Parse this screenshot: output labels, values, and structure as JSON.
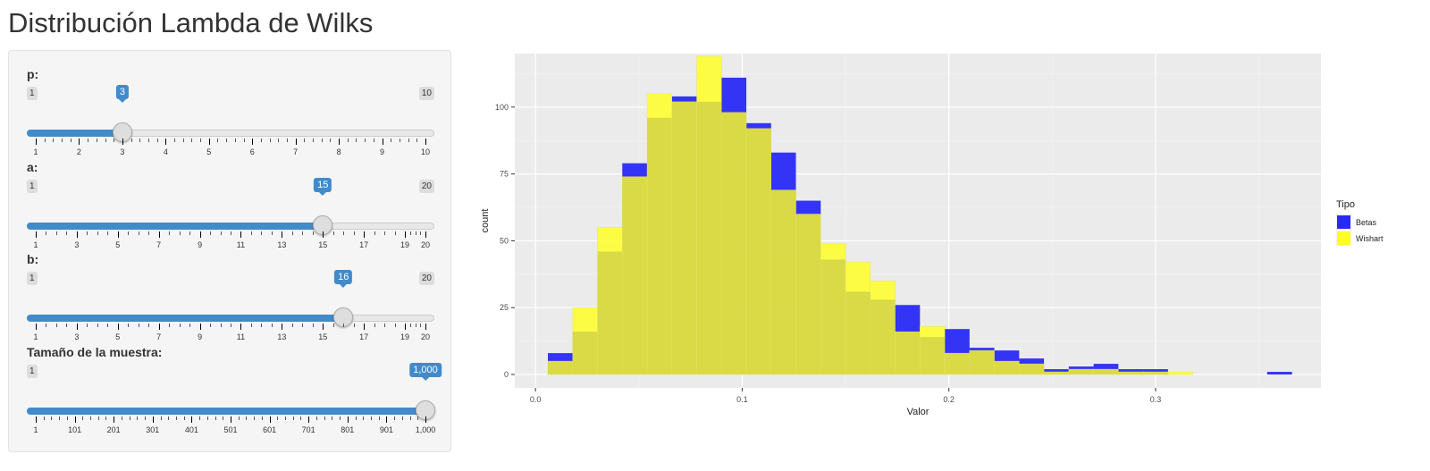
{
  "page": {
    "title": "Distribución Lambda de Wilks"
  },
  "sliders": [
    {
      "id": "p",
      "label": "p:",
      "min_label": "1",
      "max_label": "10",
      "value_label": "3",
      "value_fraction": 0.2222,
      "major_ticks": [
        "1",
        "2",
        "3",
        "4",
        "5",
        "6",
        "7",
        "8",
        "9",
        "10"
      ],
      "minor_per_major": 4
    },
    {
      "id": "a",
      "label": "a:",
      "min_label": "1",
      "max_label": "20",
      "value_label": "15",
      "value_fraction": 0.7368,
      "major_ticks": [
        "1",
        "3",
        "5",
        "7",
        "9",
        "11",
        "13",
        "15",
        "17",
        "19"
      ],
      "last_tick": "20",
      "minor_per_major": 3
    },
    {
      "id": "b",
      "label": "b:",
      "min_label": "1",
      "max_label": "20",
      "value_label": "16",
      "value_fraction": 0.7895,
      "major_ticks": [
        "1",
        "3",
        "5",
        "7",
        "9",
        "11",
        "13",
        "15",
        "17",
        "19"
      ],
      "last_tick": "20",
      "minor_per_major": 3
    },
    {
      "id": "n",
      "label": "Tamaño de la muestra:",
      "min_label": "1",
      "max_label": "1,000",
      "value_label": "1,000",
      "value_fraction": 1.0,
      "major_ticks": [
        "1",
        "101",
        "201",
        "301",
        "401",
        "501",
        "601",
        "701",
        "801",
        "901",
        "1,000"
      ],
      "minor_per_major": 4
    }
  ],
  "colors": {
    "accent": "#428bca",
    "betas": "#2a2af5",
    "wishart": "#ffff20",
    "overlap": "#d4d42e",
    "panel_bg": "#ebebeb"
  },
  "chart_data": {
    "type": "bar",
    "subtype": "overlaid-histogram",
    "xlabel": "Valor",
    "ylabel": "count",
    "xlim": [
      -0.01,
      0.38
    ],
    "ylim": [
      -5,
      120
    ],
    "x_ticks": [
      0.0,
      0.1,
      0.2,
      0.3
    ],
    "x_tick_labels": [
      "0.0",
      "0.1",
      "0.2",
      "0.3"
    ],
    "y_ticks": [
      0,
      25,
      50,
      75,
      100
    ],
    "y_tick_labels": [
      "0",
      "25",
      "50",
      "75",
      "100"
    ],
    "legend": {
      "title": "Tipo",
      "position": "right",
      "entries": [
        "Betas",
        "Wishart"
      ]
    },
    "grid": true,
    "bin_width": 0.012,
    "bin_centers": [
      0.012,
      0.024,
      0.036,
      0.048,
      0.06,
      0.072,
      0.084,
      0.096,
      0.108,
      0.12,
      0.132,
      0.144,
      0.156,
      0.168,
      0.18,
      0.192,
      0.204,
      0.216,
      0.228,
      0.24,
      0.252,
      0.264,
      0.276,
      0.288,
      0.3,
      0.312,
      0.324,
      0.336,
      0.348,
      0.36
    ],
    "series": [
      {
        "name": "Betas",
        "values": [
          8,
          16,
          46,
          79,
          96,
          104,
          102,
          111,
          94,
          83,
          65,
          43,
          31,
          28,
          26,
          14,
          17,
          10,
          9,
          6,
          2,
          3,
          4,
          2,
          2,
          0,
          0,
          0,
          0,
          1
        ]
      },
      {
        "name": "Wishart",
        "values": [
          5,
          25,
          55,
          74,
          105,
          102,
          119,
          98,
          92,
          69,
          60,
          49,
          42,
          35,
          16,
          18,
          8,
          9,
          5,
          4,
          1,
          2,
          2,
          1,
          1,
          1,
          0,
          0,
          0,
          0
        ]
      }
    ]
  }
}
